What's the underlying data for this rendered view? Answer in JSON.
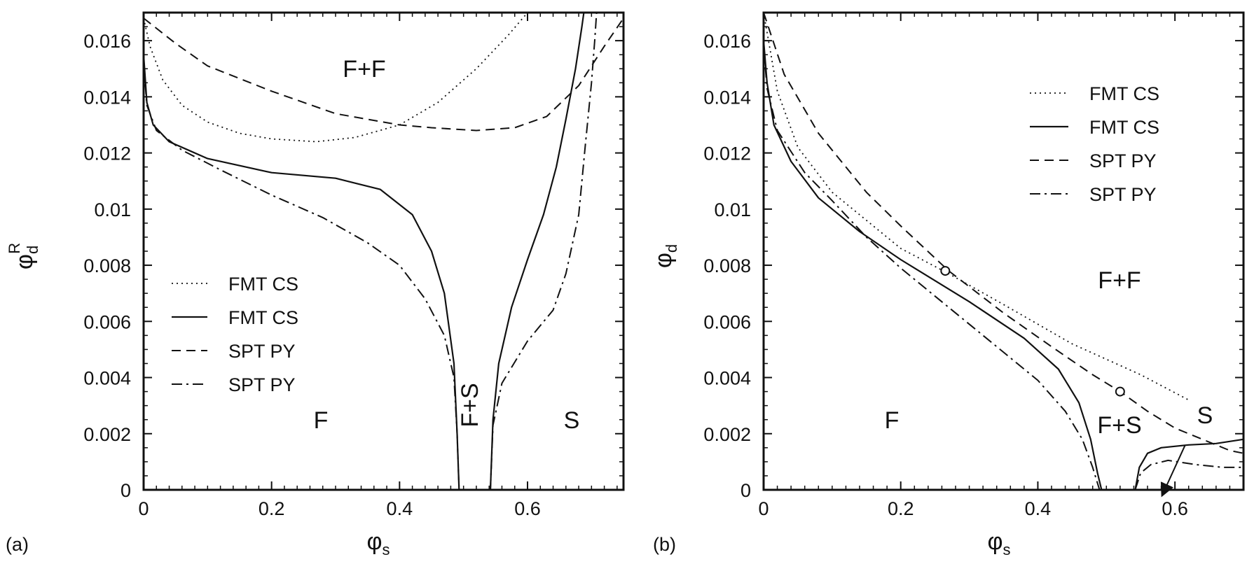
{
  "figure": {
    "panels": [
      "(a)",
      "(b)"
    ]
  },
  "chart_data": [
    {
      "type": "line",
      "panel": "(a)",
      "xlabel": "φs",
      "ylabel": "φdR",
      "xlim": [
        0,
        0.75
      ],
      "ylim": [
        0,
        0.017
      ],
      "xticks": [
        {
          "value": 0,
          "label": "0"
        },
        {
          "value": 0.2,
          "label": "0.2"
        },
        {
          "value": 0.4,
          "label": "0.4"
        },
        {
          "value": 0.6,
          "label": "0.6"
        }
      ],
      "yticks": [
        {
          "value": 0,
          "label": "0"
        },
        {
          "value": 0.002,
          "label": "0.002"
        },
        {
          "value": 0.004,
          "label": "0.004"
        },
        {
          "value": 0.006,
          "label": "0.006"
        },
        {
          "value": 0.008,
          "label": "0.008"
        },
        {
          "value": 0.01,
          "label": "0.01"
        },
        {
          "value": 0.012,
          "label": "0.012"
        },
        {
          "value": 0.014,
          "label": "0.014"
        },
        {
          "value": 0.016,
          "label": "0.016"
        }
      ],
      "legend_position": "center-left",
      "region_labels": [
        "F+F",
        "F",
        "F+S",
        "S"
      ],
      "series": [
        {
          "name": "FMT CS",
          "style": "dotted",
          "points": [
            [
              0.0,
              0.0168
            ],
            [
              0.01,
              0.0158
            ],
            [
              0.03,
              0.0146
            ],
            [
              0.06,
              0.0137
            ],
            [
              0.1,
              0.0131
            ],
            [
              0.15,
              0.0127
            ],
            [
              0.2,
              0.0125
            ],
            [
              0.27,
              0.0124
            ],
            [
              0.33,
              0.01255
            ],
            [
              0.4,
              0.013
            ],
            [
              0.46,
              0.0138
            ],
            [
              0.52,
              0.015
            ],
            [
              0.57,
              0.0162
            ],
            [
              0.6,
              0.017
            ]
          ]
        },
        {
          "name": "FMT CS",
          "style": "solid",
          "points": [
            [
              0.0,
              0.0155
            ],
            [
              0.005,
              0.0138
            ],
            [
              0.015,
              0.013
            ],
            [
              0.04,
              0.0124
            ],
            [
              0.1,
              0.0118
            ],
            [
              0.2,
              0.0113
            ],
            [
              0.3,
              0.0111
            ],
            [
              0.37,
              0.0107
            ],
            [
              0.42,
              0.0098
            ],
            [
              0.45,
              0.0085
            ],
            [
              0.47,
              0.007
            ],
            [
              0.485,
              0.0045
            ],
            [
              0.49,
              0.002
            ],
            [
              0.493,
              0.0
            ]
          ]
        },
        {
          "name": "FMT CS",
          "style": "solid",
          "points": [
            [
              0.542,
              0.0
            ],
            [
              0.546,
              0.0025
            ],
            [
              0.555,
              0.0045
            ],
            [
              0.575,
              0.0065
            ],
            [
              0.6,
              0.0082
            ],
            [
              0.625,
              0.0098
            ],
            [
              0.645,
              0.0115
            ],
            [
              0.66,
              0.0132
            ],
            [
              0.675,
              0.015
            ],
            [
              0.685,
              0.0165
            ],
            [
              0.688,
              0.017
            ]
          ]
        },
        {
          "name": "SPT PY",
          "style": "dashed",
          "points": [
            [
              0.0,
              0.0168
            ],
            [
              0.05,
              0.0159
            ],
            [
              0.1,
              0.0151
            ],
            [
              0.2,
              0.0142
            ],
            [
              0.3,
              0.0134
            ],
            [
              0.4,
              0.013
            ],
            [
              0.45,
              0.0129
            ],
            [
              0.52,
              0.0128
            ],
            [
              0.58,
              0.0129
            ],
            [
              0.63,
              0.0133
            ],
            [
              0.68,
              0.0144
            ],
            [
              0.72,
              0.0158
            ],
            [
              0.75,
              0.0168
            ]
          ]
        },
        {
          "name": "SPT PY",
          "style": "dash-dot",
          "points": [
            [
              0.0,
              0.0152
            ],
            [
              0.005,
              0.0137
            ],
            [
              0.02,
              0.0128
            ],
            [
              0.06,
              0.0121
            ],
            [
              0.12,
              0.0114
            ],
            [
              0.2,
              0.0105
            ],
            [
              0.28,
              0.0097
            ],
            [
              0.35,
              0.0088
            ],
            [
              0.4,
              0.008
            ],
            [
              0.44,
              0.0068
            ],
            [
              0.47,
              0.0055
            ],
            [
              0.485,
              0.004
            ],
            [
              0.49,
              0.002
            ],
            [
              0.493,
              0.0
            ]
          ]
        },
        {
          "name": "SPT PY",
          "style": "dash-dot",
          "points": [
            [
              0.542,
              0.0
            ],
            [
              0.546,
              0.0023
            ],
            [
              0.56,
              0.0038
            ],
            [
              0.6,
              0.0053
            ],
            [
              0.64,
              0.0064
            ],
            [
              0.66,
              0.0077
            ],
            [
              0.68,
              0.0098
            ],
            [
              0.69,
              0.0122
            ],
            [
              0.7,
              0.0145
            ],
            [
              0.705,
              0.016
            ],
            [
              0.708,
              0.017
            ]
          ]
        }
      ]
    },
    {
      "type": "line",
      "panel": "(b)",
      "xlabel": "φs",
      "ylabel": "φd",
      "xlim": [
        0,
        0.7
      ],
      "ylim": [
        0,
        0.017
      ],
      "xticks": [
        {
          "value": 0,
          "label": "0"
        },
        {
          "value": 0.2,
          "label": "0.2"
        },
        {
          "value": 0.4,
          "label": "0.4"
        },
        {
          "value": 0.6,
          "label": "0.6"
        }
      ],
      "yticks": [
        {
          "value": 0,
          "label": "0"
        },
        {
          "value": 0.002,
          "label": "0.002"
        },
        {
          "value": 0.004,
          "label": "0.004"
        },
        {
          "value": 0.006,
          "label": "0.006"
        },
        {
          "value": 0.008,
          "label": "0.008"
        },
        {
          "value": 0.01,
          "label": "0.01"
        },
        {
          "value": 0.012,
          "label": "0.012"
        },
        {
          "value": 0.014,
          "label": "0.014"
        },
        {
          "value": 0.016,
          "label": "0.016"
        }
      ],
      "legend_position": "top-right",
      "region_labels": [
        "F+F",
        "F",
        "F+S",
        "S"
      ],
      "series": [
        {
          "name": "FMT CS",
          "style": "dotted",
          "points": [
            [
              0.0,
              0.017
            ],
            [
              0.02,
              0.0142
            ],
            [
              0.05,
              0.0122
            ],
            [
              0.1,
              0.0106
            ],
            [
              0.2,
              0.0086
            ],
            [
              0.27,
              0.0077
            ],
            [
              0.35,
              0.0066
            ],
            [
              0.45,
              0.0052
            ],
            [
              0.55,
              0.0041
            ],
            [
              0.62,
              0.0032
            ]
          ]
        },
        {
          "name": "FMT CS",
          "style": "solid",
          "points": [
            [
              0.0,
              0.016
            ],
            [
              0.005,
              0.0145
            ],
            [
              0.015,
              0.013
            ],
            [
              0.04,
              0.0117
            ],
            [
              0.08,
              0.0104
            ],
            [
              0.14,
              0.0092
            ],
            [
              0.2,
              0.0082
            ],
            [
              0.3,
              0.0067
            ],
            [
              0.38,
              0.0054
            ],
            [
              0.43,
              0.0043
            ],
            [
              0.46,
              0.0031
            ],
            [
              0.477,
              0.0018
            ],
            [
              0.487,
              0.0006
            ],
            [
              0.493,
              0.0
            ]
          ]
        },
        {
          "name": "FMT CS",
          "style": "solid",
          "points": [
            [
              0.542,
              0.0
            ],
            [
              0.548,
              0.0008
            ],
            [
              0.56,
              0.0013
            ],
            [
              0.58,
              0.0015
            ],
            [
              0.62,
              0.0016
            ],
            [
              0.66,
              0.00165
            ],
            [
              0.7,
              0.0018
            ]
          ]
        },
        {
          "name": "SPT PY",
          "style": "dashed",
          "points": [
            [
              0.0,
              0.017
            ],
            [
              0.03,
              0.0148
            ],
            [
              0.08,
              0.0127
            ],
            [
              0.15,
              0.0106
            ],
            [
              0.2,
              0.0094
            ],
            [
              0.27,
              0.0078
            ],
            [
              0.35,
              0.0063
            ],
            [
              0.42,
              0.0051
            ],
            [
              0.48,
              0.0041
            ],
            [
              0.52,
              0.0035
            ],
            [
              0.56,
              0.0028
            ],
            [
              0.6,
              0.0022
            ],
            [
              0.64,
              0.0018
            ],
            [
              0.68,
              0.0014
            ],
            [
              0.7,
              0.0013
            ]
          ]
        },
        {
          "name": "SPT PY",
          "style": "dash-dot",
          "points": [
            [
              0.0,
              0.0158
            ],
            [
              0.005,
              0.0143
            ],
            [
              0.02,
              0.0128
            ],
            [
              0.06,
              0.0113
            ],
            [
              0.1,
              0.0103
            ],
            [
              0.15,
              0.009
            ],
            [
              0.2,
              0.0079
            ],
            [
              0.25,
              0.0069
            ],
            [
              0.3,
              0.0059
            ],
            [
              0.35,
              0.0049
            ],
            [
              0.4,
              0.0039
            ],
            [
              0.44,
              0.0028
            ],
            [
              0.465,
              0.0018
            ],
            [
              0.48,
              0.0008
            ],
            [
              0.49,
              0.0
            ]
          ]
        },
        {
          "name": "SPT PY",
          "style": "dash-dot",
          "points": [
            [
              0.542,
              0.0
            ],
            [
              0.55,
              0.0006
            ],
            [
              0.565,
              0.0009
            ],
            [
              0.59,
              0.00105
            ],
            [
              0.63,
              0.0009
            ],
            [
              0.67,
              0.0008
            ],
            [
              0.7,
              0.0008
            ]
          ]
        }
      ],
      "markers": [
        {
          "x": 0.265,
          "y": 0.0078,
          "shape": "open-circle"
        },
        {
          "x": 0.52,
          "y": 0.0035,
          "shape": "open-circle"
        }
      ],
      "arrow": {
        "from": [
          0.615,
          0.0018
        ],
        "to": [
          0.59,
          0.0012
        ]
      }
    }
  ]
}
